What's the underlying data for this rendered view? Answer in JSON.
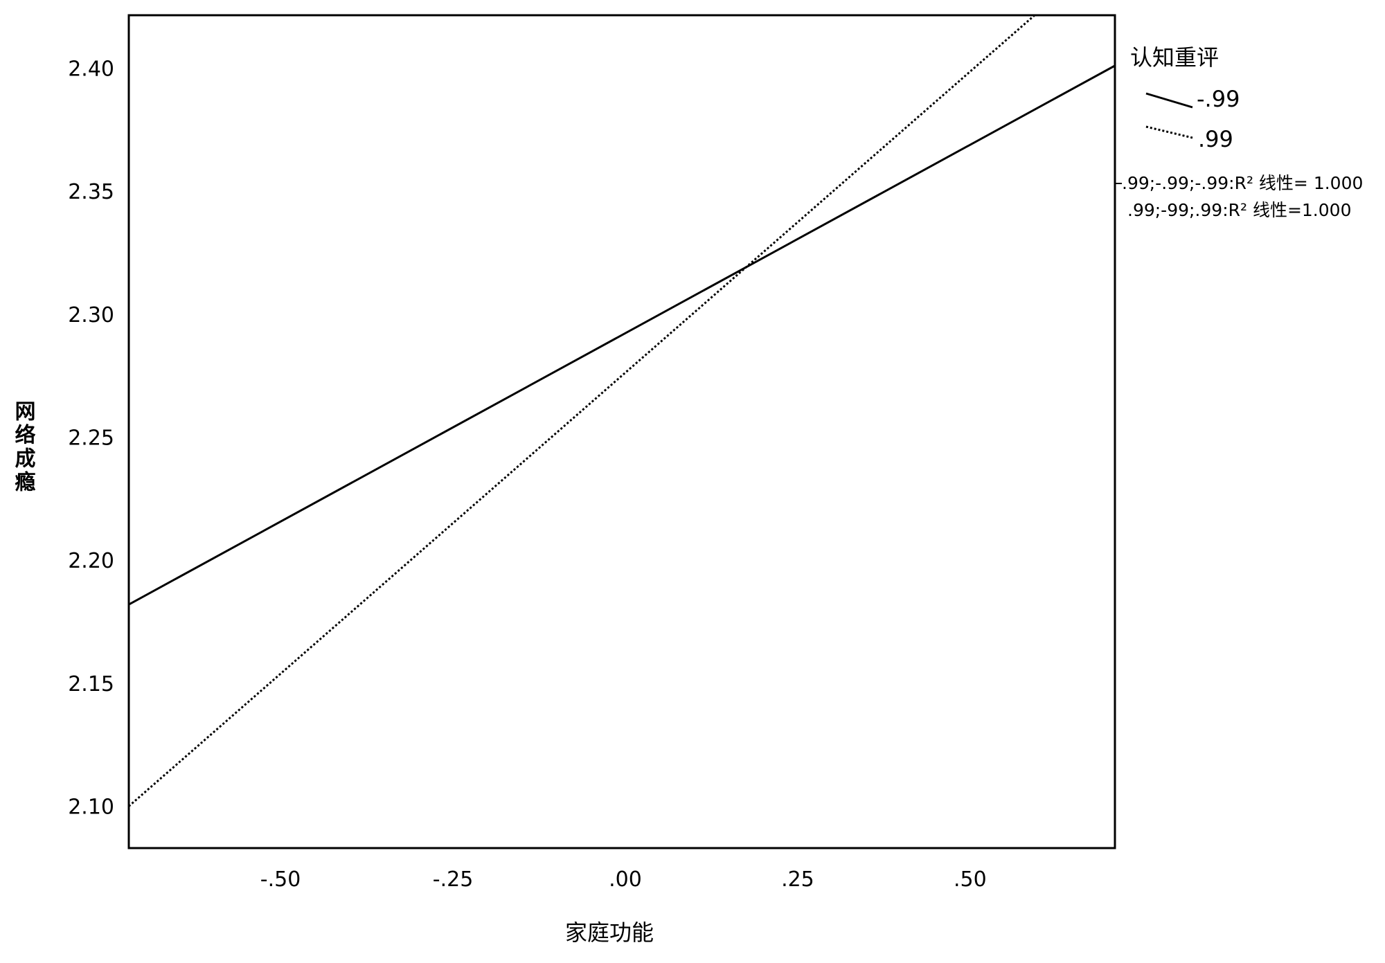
{
  "chart_data": {
    "type": "line",
    "xlabel": "家庭功能",
    "ylabel": "网络成瘾",
    "xlim": [
      -0.72,
      0.71
    ],
    "ylim": [
      2.083,
      2.4215
    ],
    "x_ticks": [
      -0.5,
      -0.25,
      0.0,
      0.25,
      0.5
    ],
    "x_tick_labels": [
      "-.50",
      "-.25",
      ".00",
      ".25",
      ".50"
    ],
    "y_ticks": [
      2.1,
      2.15,
      2.2,
      2.25,
      2.3,
      2.35,
      2.4
    ],
    "y_tick_labels": [
      "2.10",
      "2.15",
      "2.20",
      "2.25",
      "2.30",
      "2.35",
      "2.40"
    ],
    "grid": false,
    "legend": {
      "title": "认知重评",
      "placement": "right",
      "entries": [
        "-.99",
        ".99"
      ]
    },
    "series": [
      {
        "name": "-.99",
        "style": "solid",
        "color": "#000000",
        "x": [
          -0.72,
          0.71
        ],
        "y": [
          2.182,
          2.401
        ]
      },
      {
        "name": ".99",
        "style": "dotted",
        "color": "#000000",
        "x": [
          -0.72,
          0.71
        ],
        "y": [
          2.1,
          2.45
        ]
      }
    ],
    "annotations": [
      ".99;-.99;-.99:R² 线性= 1.000",
      ".99;-99;.99:R² 线性=1.000"
    ]
  }
}
